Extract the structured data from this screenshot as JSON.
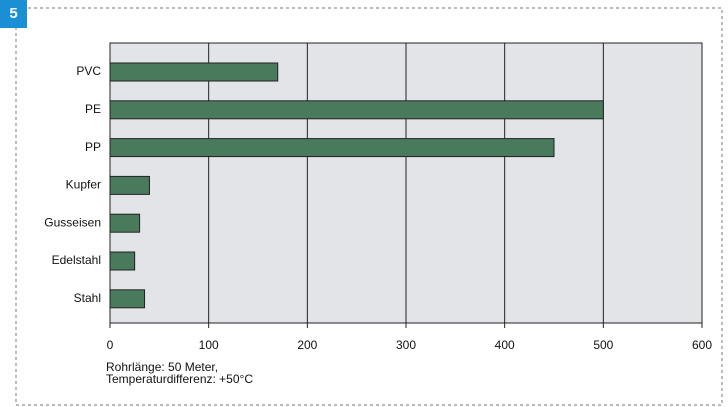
{
  "figure_number": "5",
  "chart_data": {
    "type": "barh",
    "categories": [
      "PVC",
      "PE",
      "PP",
      "Kupfer",
      "Gusseisen",
      "Edelstahl",
      "Stahl"
    ],
    "values": [
      170,
      500,
      450,
      40,
      30,
      25,
      35
    ],
    "color": "#4a7a5c",
    "xlim": [
      0,
      600
    ],
    "xticks": [
      0,
      100,
      200,
      300,
      400,
      500,
      600
    ],
    "grid": true,
    "annotations": [
      "Rohrlänge: 50 Meter,",
      "Temperaturdifferenz: +50°C"
    ]
  }
}
